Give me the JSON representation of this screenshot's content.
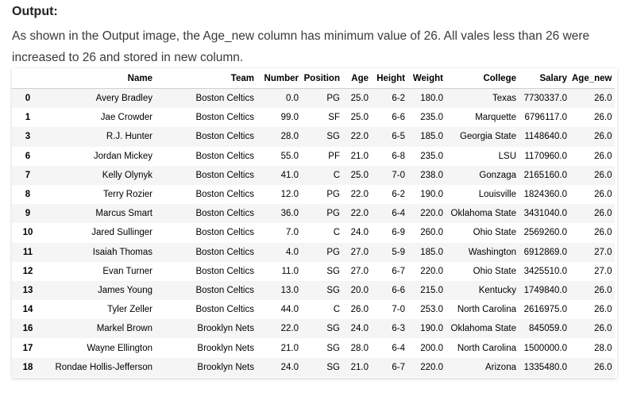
{
  "heading": "Output:",
  "description": "As shown in the Output image, the Age_new column has minimum value of 26. All vales less than 26 were increased to 26 and stored in new column.",
  "table": {
    "columns": [
      "",
      "Name",
      "Team",
      "Number",
      "Position",
      "Age",
      "Height",
      "Weight",
      "College",
      "Salary",
      "Age_new"
    ],
    "rows": [
      [
        "0",
        "Avery Bradley",
        "Boston Celtics",
        "0.0",
        "PG",
        "25.0",
        "6-2",
        "180.0",
        "Texas",
        "7730337.0",
        "26.0"
      ],
      [
        "1",
        "Jae Crowder",
        "Boston Celtics",
        "99.0",
        "SF",
        "25.0",
        "6-6",
        "235.0",
        "Marquette",
        "6796117.0",
        "26.0"
      ],
      [
        "3",
        "R.J. Hunter",
        "Boston Celtics",
        "28.0",
        "SG",
        "22.0",
        "6-5",
        "185.0",
        "Georgia State",
        "1148640.0",
        "26.0"
      ],
      [
        "6",
        "Jordan Mickey",
        "Boston Celtics",
        "55.0",
        "PF",
        "21.0",
        "6-8",
        "235.0",
        "LSU",
        "1170960.0",
        "26.0"
      ],
      [
        "7",
        "Kelly Olynyk",
        "Boston Celtics",
        "41.0",
        "C",
        "25.0",
        "7-0",
        "238.0",
        "Gonzaga",
        "2165160.0",
        "26.0"
      ],
      [
        "8",
        "Terry Rozier",
        "Boston Celtics",
        "12.0",
        "PG",
        "22.0",
        "6-2",
        "190.0",
        "Louisville",
        "1824360.0",
        "26.0"
      ],
      [
        "9",
        "Marcus Smart",
        "Boston Celtics",
        "36.0",
        "PG",
        "22.0",
        "6-4",
        "220.0",
        "Oklahoma State",
        "3431040.0",
        "26.0"
      ],
      [
        "10",
        "Jared Sullinger",
        "Boston Celtics",
        "7.0",
        "C",
        "24.0",
        "6-9",
        "260.0",
        "Ohio State",
        "2569260.0",
        "26.0"
      ],
      [
        "11",
        "Isaiah Thomas",
        "Boston Celtics",
        "4.0",
        "PG",
        "27.0",
        "5-9",
        "185.0",
        "Washington",
        "6912869.0",
        "27.0"
      ],
      [
        "12",
        "Evan Turner",
        "Boston Celtics",
        "11.0",
        "SG",
        "27.0",
        "6-7",
        "220.0",
        "Ohio State",
        "3425510.0",
        "27.0"
      ],
      [
        "13",
        "James Young",
        "Boston Celtics",
        "13.0",
        "SG",
        "20.0",
        "6-6",
        "215.0",
        "Kentucky",
        "1749840.0",
        "26.0"
      ],
      [
        "14",
        "Tyler Zeller",
        "Boston Celtics",
        "44.0",
        "C",
        "26.0",
        "7-0",
        "253.0",
        "North Carolina",
        "2616975.0",
        "26.0"
      ],
      [
        "16",
        "Markel Brown",
        "Brooklyn Nets",
        "22.0",
        "SG",
        "24.0",
        "6-3",
        "190.0",
        "Oklahoma State",
        "845059.0",
        "26.0"
      ],
      [
        "17",
        "Wayne Ellington",
        "Brooklyn Nets",
        "21.0",
        "SG",
        "28.0",
        "6-4",
        "200.0",
        "North Carolina",
        "1500000.0",
        "28.0"
      ],
      [
        "18",
        "Rondae Hollis-Jefferson",
        "Brooklyn Nets",
        "24.0",
        "SG",
        "21.0",
        "6-7",
        "220.0",
        "Arizona",
        "1335480.0",
        "26.0"
      ]
    ]
  }
}
